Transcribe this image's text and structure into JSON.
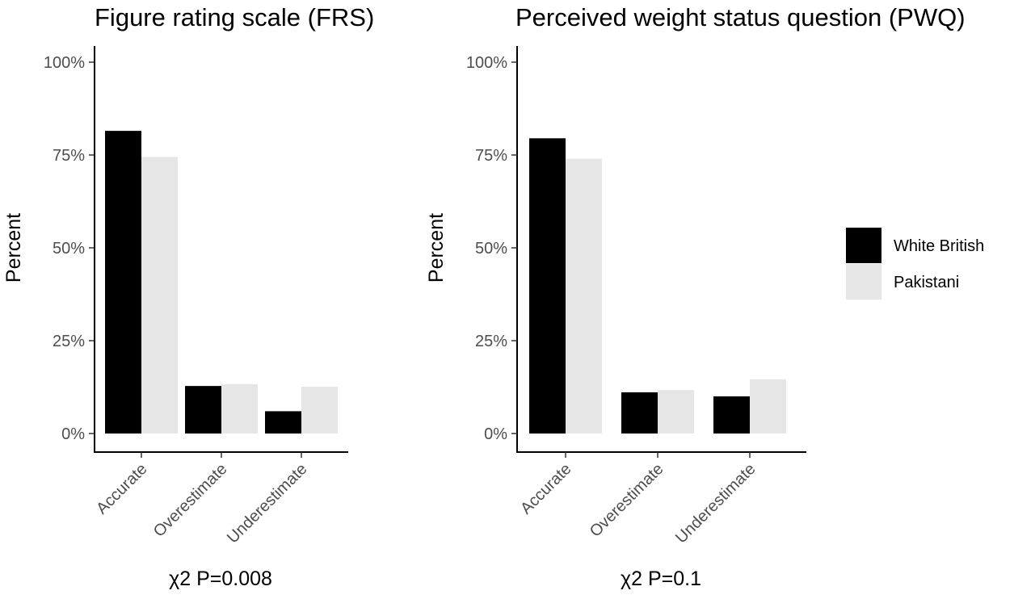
{
  "legend": {
    "entries": [
      {
        "label": "White British",
        "color": "#000000"
      },
      {
        "label": "Pakistani",
        "color": "#e6e6e6"
      }
    ],
    "placement": "right"
  },
  "chart_data": [
    {
      "type": "bar",
      "title": "Figure rating scale (FRS)",
      "ylabel": "Percent",
      "xlabel": "χ2 P=0.008",
      "categories": [
        "Accurate",
        "Overestimate",
        "Underestimate"
      ],
      "ylim": [
        0,
        100
      ],
      "yticks": [
        0,
        25,
        50,
        75,
        100
      ],
      "ytick_labels": [
        "0%",
        "25%",
        "50%",
        "75%",
        "100%"
      ],
      "grid": false,
      "series": [
        {
          "name": "White British",
          "color": "#000000",
          "values": [
            81.5,
            12.8,
            6.0
          ]
        },
        {
          "name": "Pakistani",
          "color": "#e6e6e6",
          "values": [
            74.5,
            13.3,
            12.6
          ]
        }
      ]
    },
    {
      "type": "bar",
      "title": "Perceived weight status question (PWQ)",
      "ylabel": "Percent",
      "xlabel": "χ2 P=0.1",
      "categories": [
        "Accurate",
        "Overestimate",
        "Underestimate"
      ],
      "ylim": [
        0,
        100
      ],
      "yticks": [
        0,
        25,
        50,
        75,
        100
      ],
      "ytick_labels": [
        "0%",
        "25%",
        "50%",
        "75%",
        "100%"
      ],
      "grid": false,
      "series": [
        {
          "name": "White British",
          "color": "#000000",
          "values": [
            79.5,
            11.1,
            10.0
          ]
        },
        {
          "name": "Pakistani",
          "color": "#e6e6e6",
          "values": [
            74.0,
            11.7,
            14.6
          ]
        }
      ]
    }
  ]
}
